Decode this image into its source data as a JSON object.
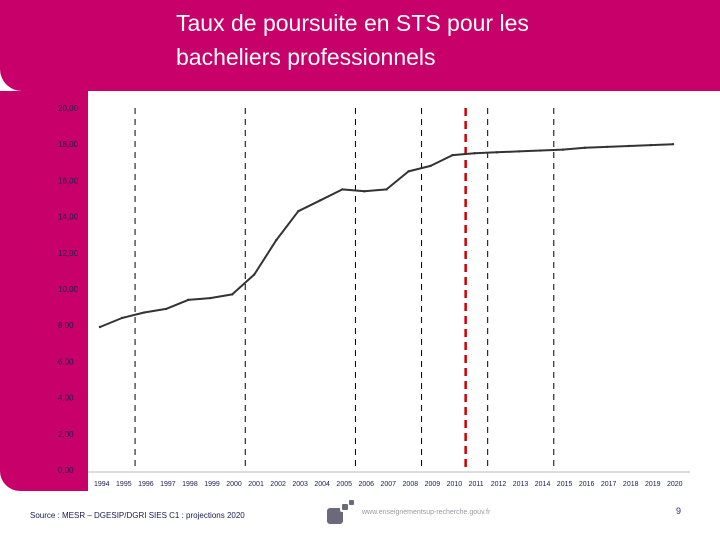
{
  "slide": {
    "title_line1": "Taux de poursuite en STS pour les",
    "title_line2": "bacheliers professionnels",
    "source": "Source : MESR – DGESIP/DGRI SIES C1 : projections 2020",
    "website": "www.enseignementsup-recherche.gouv.fr",
    "page_number": "9",
    "brand_color": "#c8006a"
  },
  "chart_data": {
    "type": "line",
    "title": "Taux de poursuite en STS pour les bacheliers professionnels",
    "xlabel": "",
    "ylabel": "",
    "ylim": [
      0,
      20
    ],
    "y_ticks": [
      "0,00",
      "2,00",
      "4,00",
      "6,00",
      "8,00",
      "10,00",
      "12,00",
      "14,00",
      "16,00",
      "18,00",
      "20,00"
    ],
    "categories": [
      "1994",
      "1995",
      "1996",
      "1997",
      "1998",
      "1999",
      "2000",
      "2001",
      "2002",
      "2003",
      "2004",
      "2005",
      "2006",
      "2007",
      "2008",
      "2009",
      "2010",
      "2011",
      "2012",
      "2013",
      "2014",
      "2015",
      "2016",
      "2017",
      "2018",
      "2019",
      "2020"
    ],
    "series": [
      {
        "name": "Taux de poursuite en STS",
        "color": "#333333",
        "values": [
          7.9,
          8.4,
          8.7,
          8.9,
          9.4,
          9.5,
          9.7,
          10.8,
          12.7,
          14.3,
          14.9,
          15.5,
          15.4,
          15.5,
          16.5,
          16.8,
          17.4,
          17.5,
          17.55,
          17.6,
          17.65,
          17.7,
          17.8,
          17.85,
          17.9,
          17.95,
          18.0
        ]
      }
    ],
    "reference_lines": [
      {
        "after": "1995",
        "style": "dashed",
        "color": "#000000"
      },
      {
        "after": "2000",
        "style": "dashed",
        "color": "#000000"
      },
      {
        "after": "2005",
        "style": "dashed",
        "color": "#000000"
      },
      {
        "after": "2008",
        "style": "dashed",
        "color": "#000000"
      },
      {
        "after": "2010",
        "style": "dashed",
        "color": "#cc0000",
        "note": "projection start"
      },
      {
        "after": "2011",
        "style": "dashed",
        "color": "#000000"
      },
      {
        "after": "2014",
        "style": "dashed",
        "color": "#000000"
      }
    ],
    "grid": false,
    "legend": "none"
  }
}
